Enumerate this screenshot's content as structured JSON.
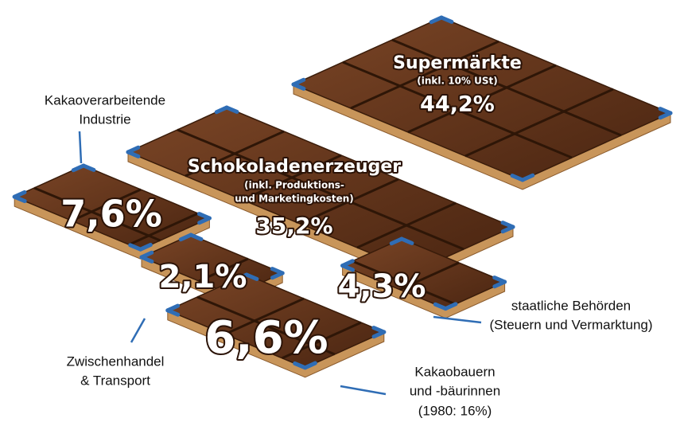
{
  "segments": [
    {
      "label_lines": [
        "Supermärkte"
      ],
      "note_lines": [
        "(inkl. 10% USt)"
      ],
      "share": "44,2%"
    },
    {
      "label_lines": [
        "Schokoladenerzeuger"
      ],
      "note_lines": [
        "(inkl. Produktions-",
        "und Marketingkosten)"
      ],
      "share": "35,2%"
    },
    {
      "label_lines": [
        "Kakaoverarbeitende",
        "Industrie"
      ],
      "share": "7,6%"
    },
    {
      "label_lines": [
        "Zwischenhandel",
        "& Transport"
      ],
      "share": "2,1%"
    },
    {
      "label_lines": [
        "staatliche Behörden"
      ],
      "note_lines": [
        "(Steuern und Vermarktung)"
      ],
      "share": "4,3%"
    },
    {
      "label_lines": [
        "Kakaobauern",
        "und -bäurinnen"
      ],
      "note_lines": [
        "(1980: 16%)"
      ],
      "share": "6,6%"
    }
  ]
}
